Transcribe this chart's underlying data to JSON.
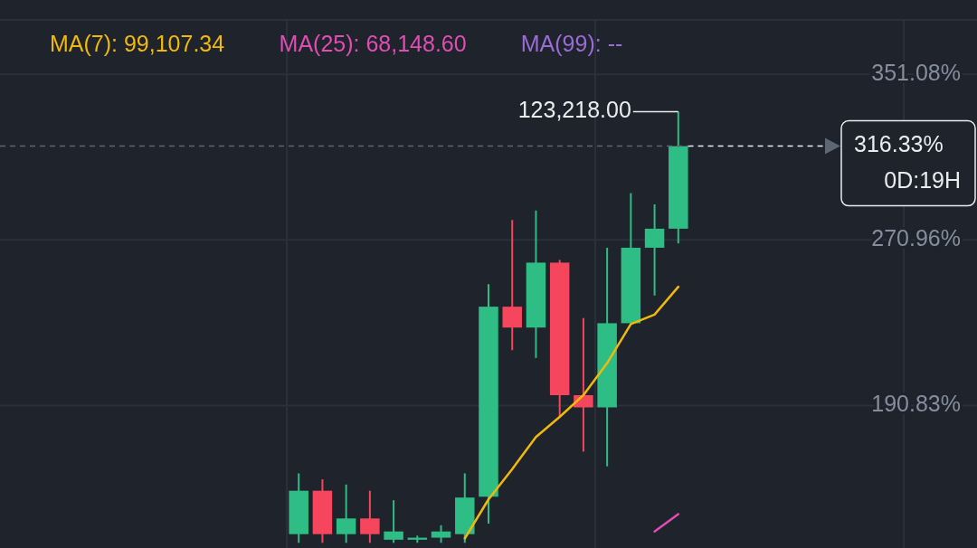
{
  "chart_data": {
    "type": "candlestick",
    "categories": [
      null,
      null,
      null,
      null,
      null,
      null,
      null,
      null,
      null,
      null,
      null,
      null,
      null,
      null,
      null,
      null,
      null,
      null,
      null,
      null,
      null,
      null,
      null,
      null,
      null,
      null,
      null,
      null,
      null,
      null,
      null,
      null,
      null,
      null,
      null,
      null,
      null,
      null,
      null,
      null,
      null
    ],
    "ohlc": [
      null,
      null,
      null,
      null,
      null,
      null,
      null,
      null,
      null,
      null,
      null,
      null,
      [
        128.7,
        158.1,
        124.5,
        149.7
      ],
      [
        149.7,
        155.2,
        124.5,
        128.7
      ],
      [
        128.7,
        152.7,
        124.5,
        136.3
      ],
      [
        136.3,
        149.7,
        124.5,
        128.7
      ],
      [
        126,
        145.1,
        124.5,
        130
      ],
      [
        126,
        128,
        124.5,
        127
      ],
      [
        127,
        133.0,
        124.5,
        130
      ],
      [
        128.7,
        158.1,
        124.5,
        146.4
      ],
      [
        146.8,
        249.6,
        133.8,
        238.7
      ],
      [
        238.7,
        280.6,
        217.7,
        228.6
      ],
      [
        228.6,
        285.2,
        213.9,
        260.0
      ],
      [
        260.0,
        261.3,
        185.4,
        195.9
      ],
      [
        195.9,
        233.2,
        168.6,
        190.0
      ],
      [
        190.0,
        267.2,
        161.5,
        230.7
      ],
      [
        230.7,
        293.6,
        230.7,
        267.2
      ],
      [
        267.2,
        288.2,
        244.1,
        276.4
      ],
      [
        276.4,
        333.0,
        269.3,
        316.33
      ],
      null,
      null,
      null,
      null,
      null,
      null,
      null,
      null,
      null,
      null,
      null,
      null
    ],
    "series": [
      {
        "name": "MA(7): 99,107.34",
        "color": "#f0b90b",
        "type": "line",
        "values": [
          null,
          null,
          null,
          null,
          null,
          null,
          null,
          null,
          null,
          null,
          null,
          null,
          null,
          null,
          null,
          null,
          null,
          null,
          null,
          126.6,
          145.5,
          160.2,
          175.7,
          185.4,
          195.9,
          211.4,
          230.3,
          234.9,
          248.3,
          null,
          null,
          null,
          null,
          null,
          null,
          null,
          null,
          null,
          null,
          null,
          null
        ]
      },
      {
        "name": "MA(25): 68,148.60",
        "color": "#e04db3",
        "type": "line",
        "values": [
          null,
          null,
          null,
          null,
          null,
          null,
          null,
          null,
          null,
          null,
          null,
          null,
          null,
          null,
          null,
          null,
          null,
          null,
          null,
          null,
          null,
          null,
          null,
          null,
          null,
          null,
          null,
          130,
          138.4,
          null,
          null,
          null,
          null,
          null,
          null,
          null,
          null,
          null,
          null,
          null,
          null
        ]
      },
      {
        "name": "MA(99): --",
        "color": "#9b6bd6",
        "type": "line",
        "values": [
          null,
          null,
          null,
          null,
          null,
          null,
          null,
          null,
          null,
          null,
          null,
          null,
          null,
          null,
          null,
          null,
          null,
          null,
          null,
          null,
          null,
          null,
          null,
          null,
          null,
          null,
          null,
          null,
          null,
          null,
          null,
          null,
          null,
          null,
          null,
          null,
          null,
          null,
          null,
          null,
          null
        ]
      }
    ],
    "ylim": [
      122,
      387
    ],
    "yticks": [
      {
        "value": 351.08,
        "label": "351.08%"
      },
      {
        "value": 270.96,
        "label": "270.96%"
      },
      {
        "value": 190.83,
        "label": "190.83%"
      }
    ],
    "tick_labels": "y",
    "grid": true,
    "legend": "top left",
    "ref_lines": [
      {
        "axis": "y",
        "value": 316.33,
        "label": "316.33%",
        "line_style": "dashed"
      }
    ],
    "annotations": [
      "123,218.00",
      "0D:19H"
    ]
  }
}
